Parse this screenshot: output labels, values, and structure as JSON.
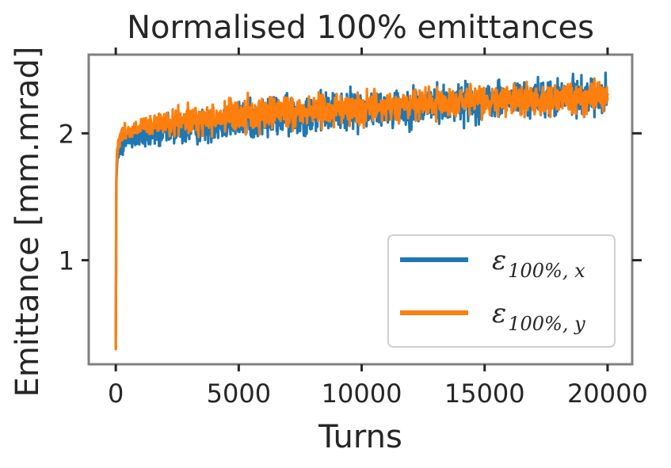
{
  "chart_data": {
    "type": "line",
    "title": "Normalised 100% emittances",
    "xlabel": "Turns",
    "ylabel": "Emittance [mm.mrad]",
    "xlim": [
      -1100,
      21000
    ],
    "ylim": [
      0.18,
      2.62
    ],
    "x_ticks": [
      0,
      5000,
      10000,
      15000,
      20000
    ],
    "x_tick_labels": [
      "0",
      "5000",
      "10000",
      "15000",
      "20000"
    ],
    "y_ticks": [
      1,
      2
    ],
    "y_tick_labels": [
      "1",
      "2"
    ],
    "grid": false,
    "legend_position": "lower-right",
    "x_samples": [
      0,
      20,
      50,
      100,
      200,
      300,
      500,
      750,
      1000,
      1500,
      2000,
      3000,
      4000,
      5000,
      6000,
      7000,
      8000,
      9000,
      10000,
      11000,
      12000,
      13000,
      14000,
      15000,
      16000,
      17000,
      18000,
      19000,
      20000
    ],
    "series": [
      {
        "name": "ε100%, x",
        "legend_main": "ε",
        "legend_sub": "100%, x",
        "color": "#1f77b4",
        "mean": [
          0.3,
          1.55,
          1.78,
          1.86,
          1.9,
          1.92,
          1.94,
          1.96,
          1.97,
          1.99,
          2.01,
          2.04,
          2.07,
          2.1,
          2.12,
          2.14,
          2.16,
          2.17,
          2.19,
          2.2,
          2.21,
          2.23,
          2.24,
          2.25,
          2.26,
          2.27,
          2.28,
          2.29,
          2.3
        ],
        "spread": [
          0.0,
          0.05,
          0.06,
          0.07,
          0.08,
          0.08,
          0.09,
          0.09,
          0.1,
          0.11,
          0.12,
          0.13,
          0.14,
          0.15,
          0.16,
          0.16,
          0.16,
          0.16,
          0.16,
          0.16,
          0.16,
          0.16,
          0.16,
          0.15,
          0.15,
          0.15,
          0.15,
          0.15,
          0.15
        ]
      },
      {
        "name": "ε100%, y",
        "legend_main": "ε",
        "legend_sub": "100%, y",
        "color": "#ff7f0e",
        "mean": [
          0.3,
          1.62,
          1.85,
          1.93,
          1.98,
          2.0,
          2.02,
          2.03,
          2.04,
          2.06,
          2.08,
          2.1,
          2.12,
          2.14,
          2.16,
          2.17,
          2.18,
          2.19,
          2.2,
          2.21,
          2.22,
          2.23,
          2.24,
          2.25,
          2.26,
          2.27,
          2.27,
          2.28,
          2.28
        ],
        "spread": [
          0.0,
          0.04,
          0.05,
          0.05,
          0.06,
          0.06,
          0.07,
          0.07,
          0.08,
          0.09,
          0.1,
          0.11,
          0.12,
          0.13,
          0.13,
          0.13,
          0.13,
          0.13,
          0.13,
          0.13,
          0.13,
          0.13,
          0.13,
          0.13,
          0.13,
          0.12,
          0.12,
          0.12,
          0.12
        ]
      }
    ]
  }
}
